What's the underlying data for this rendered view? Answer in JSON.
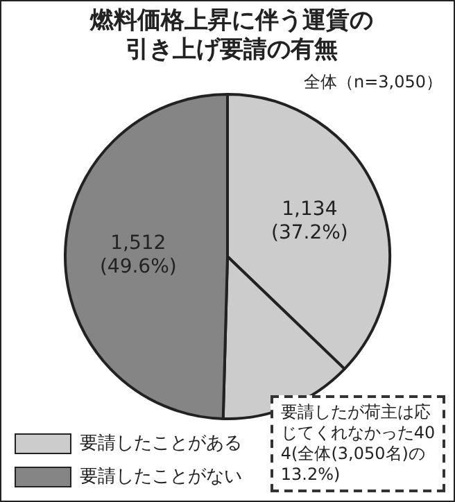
{
  "chart_data": {
    "type": "pie",
    "title": "燃料価格上昇に伴う運賃の引き上げ要請の有無",
    "subtitle": "全体（n=3,050）",
    "categories": [
      "要請したことがある",
      null,
      "要請したことがない"
    ],
    "values": [
      1134,
      404,
      1512
    ],
    "colors": [
      "#cccccc",
      "#cccccc",
      "#858585"
    ],
    "value_labels": [
      "1,134\n(37.2%)",
      null,
      "1,512\n(49.6%)"
    ],
    "annotations": [
      "要請したが荷主は応じてくれなかった404(全体(3,050名)の13.2%)"
    ],
    "legend": "bottom left"
  }
}
